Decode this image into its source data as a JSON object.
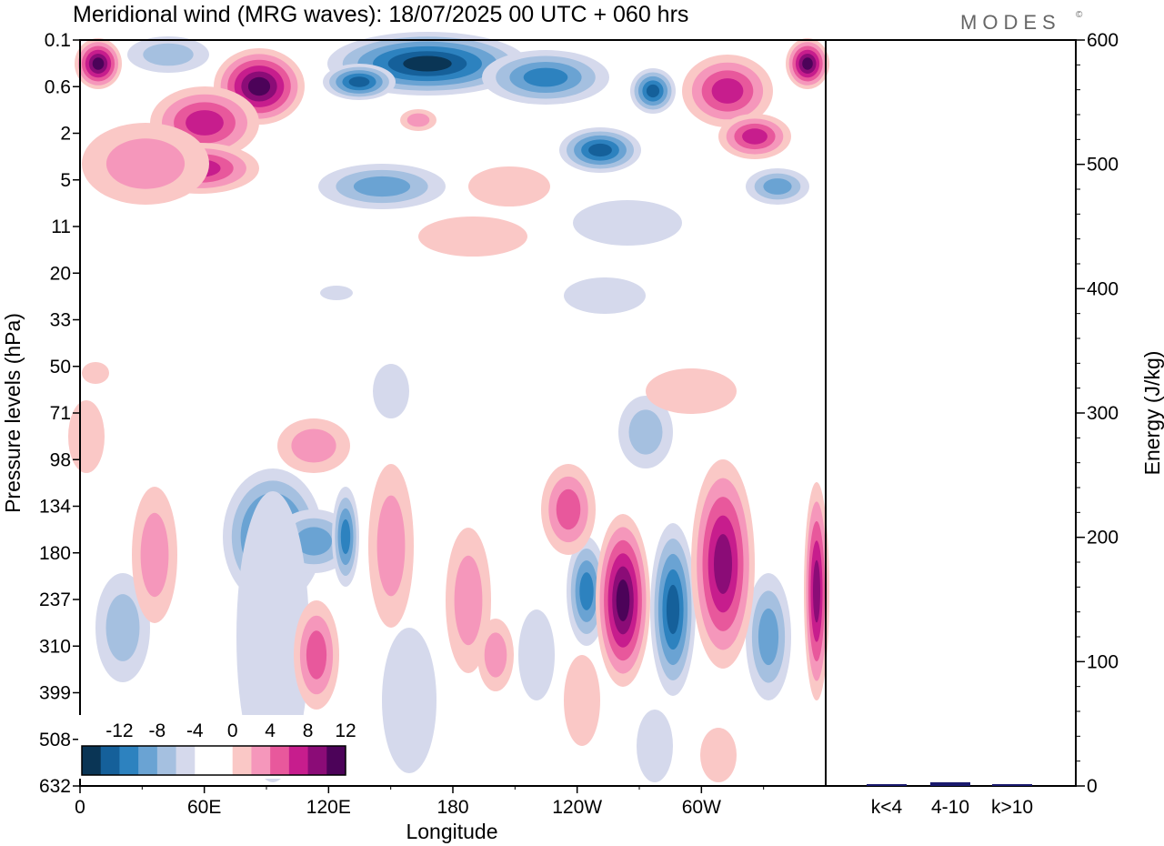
{
  "chart_data": {
    "type": "heatmap",
    "title": "Meridional wind (MRG waves):  18/07/2025  00 UTC  + 060 hrs",
    "logo": "MODES",
    "logo_mark": "©",
    "xlabel": "Longitude",
    "ylabel": "Pressure levels (hPa)",
    "x_ticks": [
      "0",
      "60E",
      "120E",
      "180",
      "120W",
      "60W"
    ],
    "x_tick_degrees": [
      0,
      60,
      120,
      180,
      240,
      300
    ],
    "xlim": [
      0,
      360
    ],
    "y_ticks": [
      "0.1",
      "0.6",
      "2",
      "5",
      "11",
      "20",
      "33",
      "50",
      "71",
      "98",
      "134",
      "180",
      "237",
      "310",
      "399",
      "508",
      "632"
    ],
    "colorbar": {
      "levels": [
        -12,
        -8,
        -4,
        0,
        4,
        8,
        12
      ],
      "tick_labels": [
        "-12",
        "-8",
        "-4",
        "0",
        "4",
        "8",
        "12"
      ],
      "colors": [
        "#0a3555",
        "#15609a",
        "#2d82bf",
        "#6aa3d3",
        "#a5c0e0",
        "#d5d9ec",
        "#ffffff",
        "#ffffff",
        "#fac8c6",
        "#f597bb",
        "#e8589c",
        "#c71d8d",
        "#8b0c77",
        "#4c0359"
      ]
    },
    "energy_panel": {
      "ylabel": "Energy (J/kg)",
      "ylim": [
        0,
        600
      ],
      "y_ticks": [
        "0",
        "100",
        "200",
        "300",
        "400",
        "500",
        "600"
      ],
      "categories": [
        "k<4",
        "4-10",
        "k>10"
      ],
      "values": [
        1,
        3,
        0.5
      ],
      "bar_color": "#1a1a6e"
    }
  }
}
